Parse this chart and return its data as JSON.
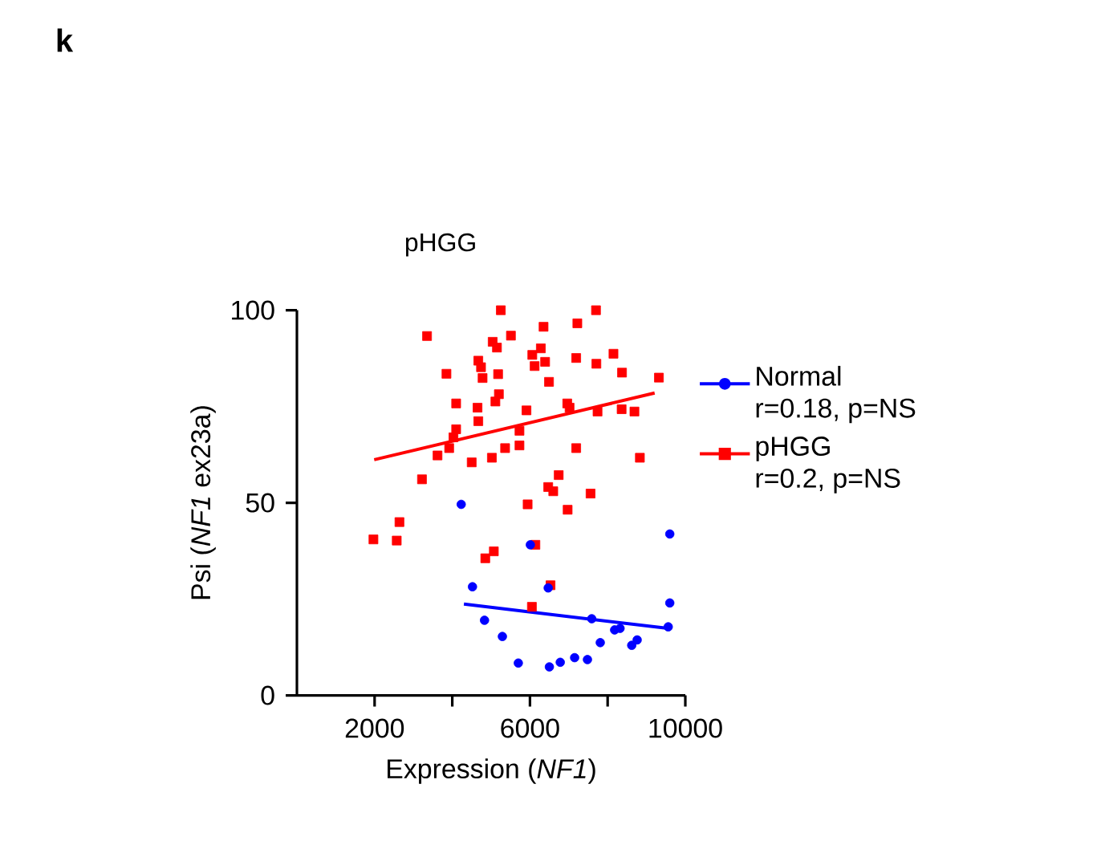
{
  "chart_data": {
    "type": "scatter",
    "title": "pHGG",
    "xlabel": "Expression (*NF1*)",
    "ylabel": "Psi (*NF1* ex23a)",
    "annotations": [
      "k",
      "r=0.18, p=NS",
      "r=0.2, p=NS"
    ],
    "xlim": [
      0,
      10000
    ],
    "xticks": [
      2000,
      {
        "value": 4000,
        "label": null
      },
      6000,
      {
        "value": 8000,
        "label": null
      },
      10000
    ],
    "ylim": [
      0,
      100
    ],
    "yticks": [
      0,
      50,
      100
    ],
    "legend": "right",
    "grid": false,
    "series": [
      {
        "name": "Normal",
        "marker": "circle",
        "color": "#0000ff",
        "x": [
          4230,
          6010,
          9600,
          4520,
          6470,
          4830,
          5290,
          5700,
          6500,
          6780,
          7150,
          7480,
          7810,
          7590,
          8180,
          8320,
          8620,
          8760,
          9560,
          9600
        ],
        "values": [
          49.6,
          39.1,
          41.9,
          28.2,
          27.9,
          19.5,
          15.3,
          8.4,
          7.4,
          8.6,
          9.8,
          9.3,
          13.7,
          19.9,
          17.0,
          17.4,
          13.0,
          14.4,
          17.8,
          24.0
        ]
      },
      {
        "name": "pHGG",
        "marker": "square",
        "color": "#ff0000",
        "x": [
          5250,
          7700,
          3350,
          6350,
          7220,
          5510,
          5040,
          5150,
          4670,
          4740,
          4780,
          5180,
          3850,
          6060,
          6280,
          6390,
          6120,
          6490,
          7190,
          7710,
          8150,
          8370,
          9320,
          4100,
          5200,
          5110,
          4650,
          4670,
          5910,
          6960,
          7020,
          7740,
          8360,
          8690,
          4100,
          4030,
          3920,
          3620,
          4500,
          5020,
          5360,
          5730,
          5730,
          7190,
          8830,
          3220,
          7560,
          5940,
          6970,
          6470,
          6740,
          6600,
          1970,
          2570,
          2640,
          4850,
          5070,
          6140,
          6530,
          6050
        ],
        "values": [
          100,
          100,
          93.3,
          95.7,
          96.6,
          93.4,
          91.8,
          90.3,
          86.9,
          85.2,
          82.4,
          83.4,
          83.5,
          88.4,
          90.1,
          86.6,
          85.5,
          81.4,
          87.6,
          86.1,
          88.7,
          83.8,
          82.5,
          75.8,
          78.2,
          76.3,
          74.7,
          71.2,
          74.0,
          75.8,
          74.7,
          73.7,
          74.3,
          73.7,
          69.1,
          67.0,
          64.2,
          62.3,
          60.5,
          61.7,
          64.2,
          64.9,
          68.7,
          64.2,
          61.7,
          56.1,
          52.4,
          49.6,
          48.2,
          54.1,
          57.2,
          53.0,
          40.5,
          40.2,
          45.0,
          35.6,
          37.4,
          39.1,
          28.6,
          23.0
        ]
      },
      {
        "type": "line",
        "color": "#0000ff",
        "x": [
          4300,
          9550
        ],
        "values": [
          23.7,
          17.4
        ]
      },
      {
        "type": "line",
        "color": "#ff0000",
        "x": [
          1990,
          9210
        ],
        "values": [
          61.2,
          78.5
        ]
      }
    ]
  }
}
